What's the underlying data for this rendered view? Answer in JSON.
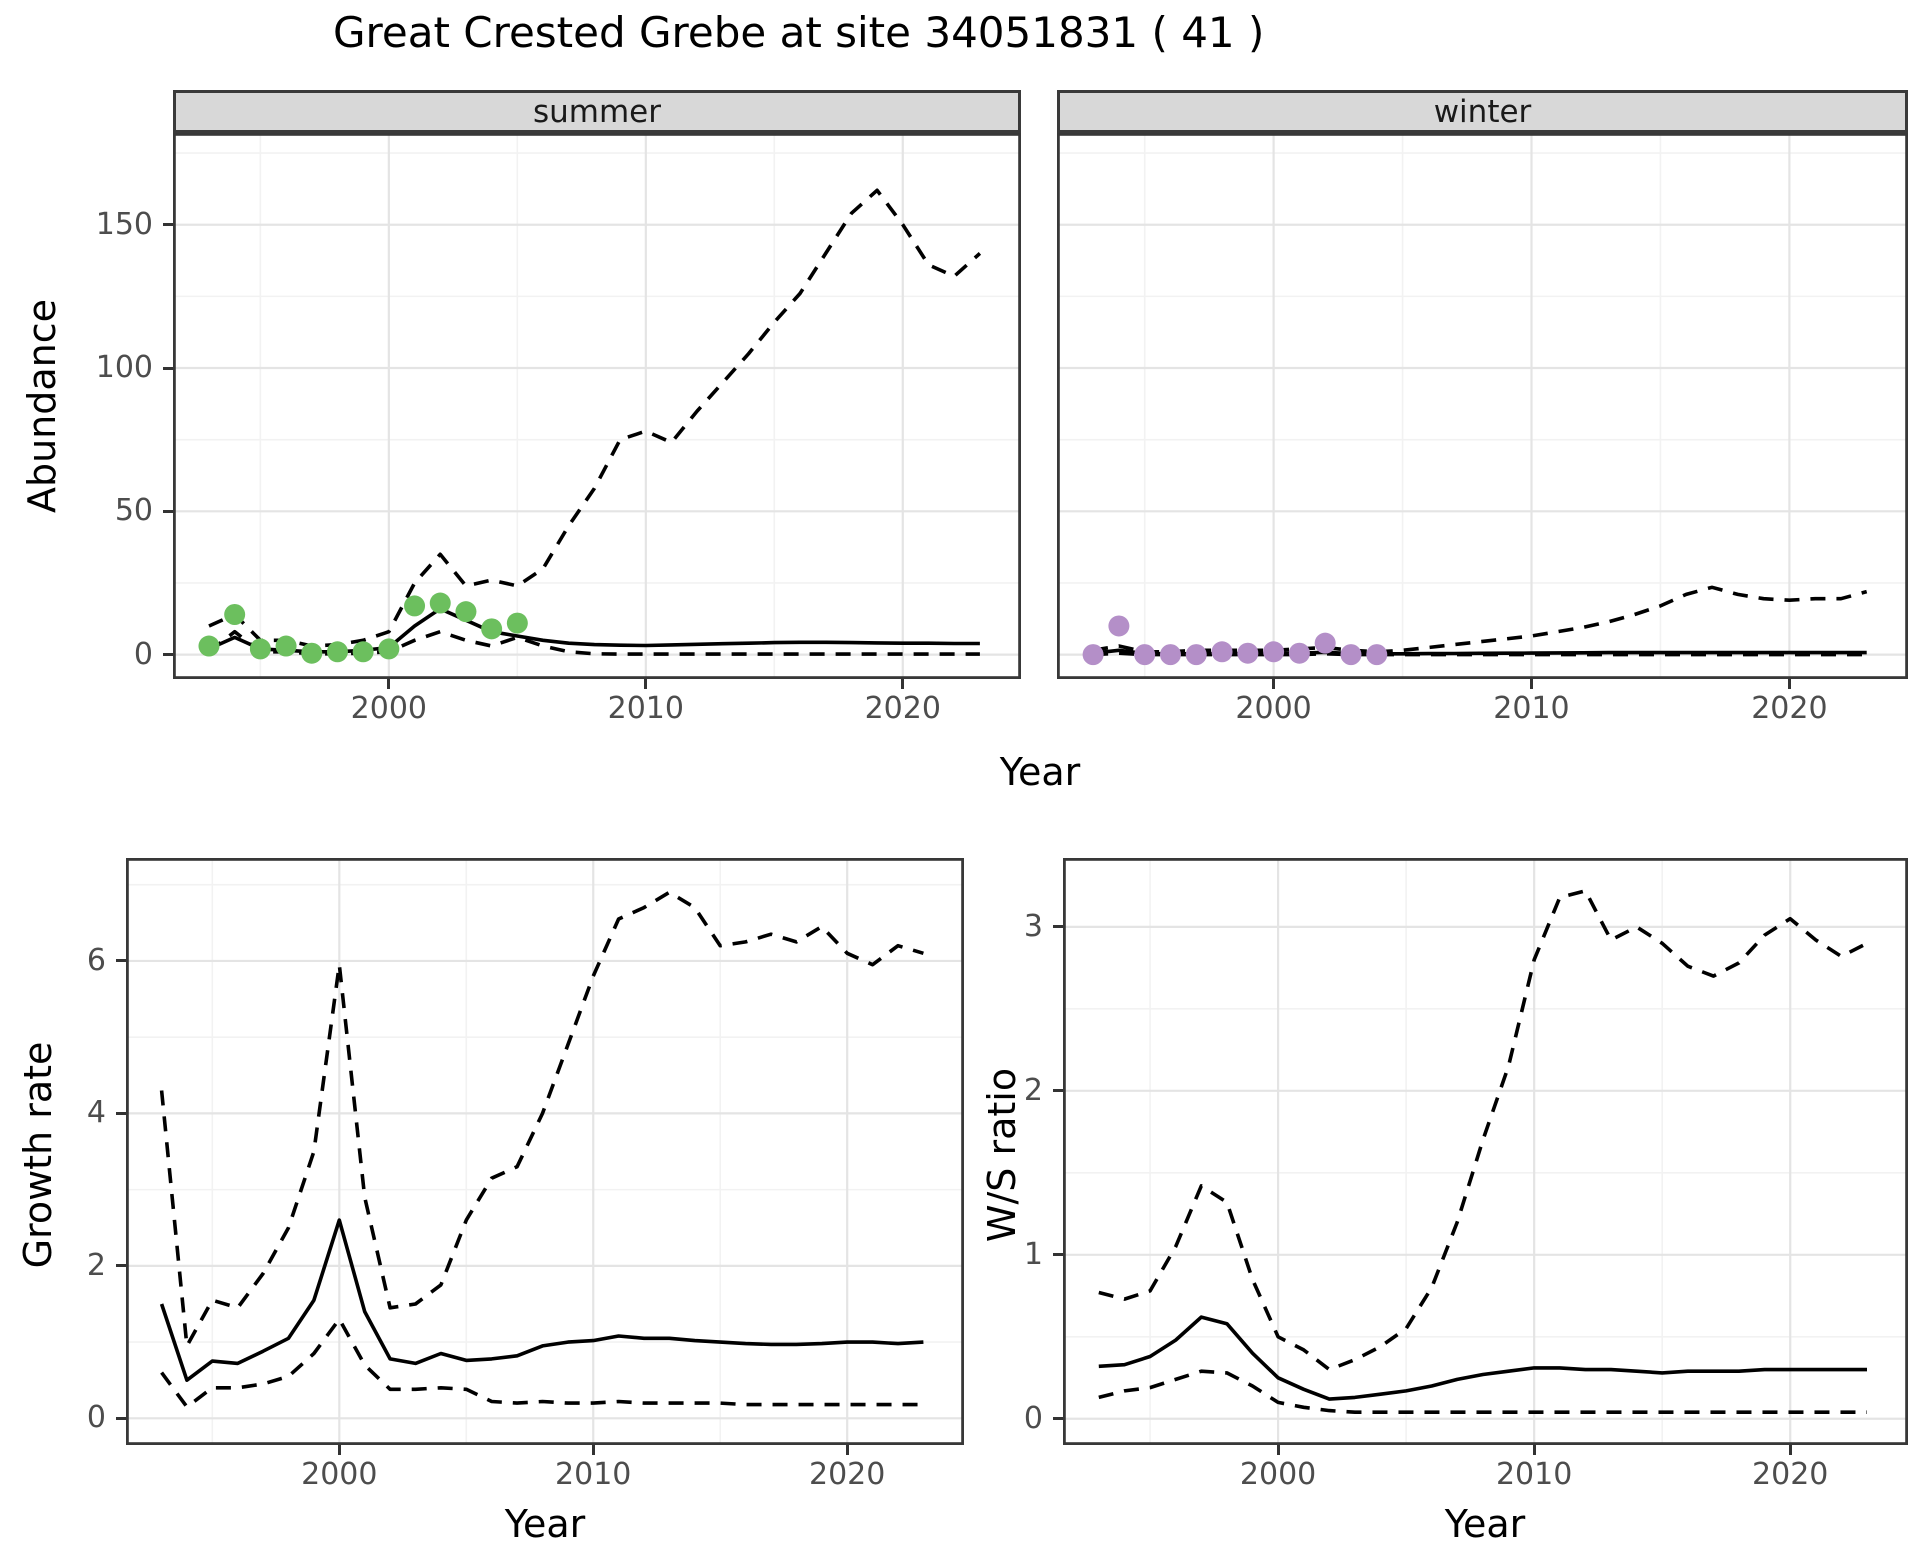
{
  "title": "Great Crested Grebe at site 34051831 ( 41 )",
  "labels": {
    "year": "Year",
    "abundance": "Abundance",
    "growth_rate": "Growth rate",
    "ws_ratio": "W/S ratio"
  },
  "colors": {
    "line": "#000000",
    "summer_points": "#6cbf5e",
    "winter_points": "#b48fc8",
    "grid_major": "#e4e4e4",
    "grid_minor": "#f2f2f2",
    "panel_border": "#383838",
    "tick_text": "#4d4d4d",
    "strip_fill": "#d8d8d8"
  },
  "chart_data": [
    {
      "id": "summer",
      "type": "line",
      "facet_label": "summer",
      "x_domain": [
        1991.6,
        2024.6
      ],
      "y_domain": [
        -8.5,
        182
      ],
      "x_major": [
        2000,
        2010,
        2020
      ],
      "x_minor": [
        1995,
        2005,
        2015
      ],
      "y_major": [
        0,
        50,
        100,
        150
      ],
      "y_minor": [
        25,
        75,
        125,
        175
      ],
      "x_tick_labels": [
        "2000",
        "2010",
        "2020"
      ],
      "y_tick_labels": [
        "0",
        "50",
        "100",
        "150"
      ],
      "years": [
        1993,
        1994,
        1995,
        1996,
        1997,
        1998,
        1999,
        2000,
        2001,
        2002,
        2003,
        2004,
        2005,
        2006,
        2007,
        2008,
        2009,
        2010,
        2011,
        2012,
        2013,
        2014,
        2015,
        2016,
        2017,
        2018,
        2019,
        2020,
        2021,
        2022,
        2023
      ],
      "series": [
        {
          "name": "lower_ci",
          "style": "dashed",
          "values": [
            1,
            8,
            1,
            1,
            0.3,
            0.3,
            0.5,
            1,
            5,
            8,
            5,
            3,
            6,
            3,
            1,
            0.3,
            0.2,
            0.2,
            0.2,
            0.2,
            0.2,
            0.2,
            0.2,
            0.2,
            0.2,
            0.2,
            0.2,
            0.2,
            0.2,
            0.2,
            0.2
          ]
        },
        {
          "name": "upper_ci",
          "style": "dashed",
          "values": [
            10,
            14,
            5,
            5,
            3,
            3.5,
            5,
            8,
            25,
            35,
            24,
            26,
            24,
            30,
            45,
            58,
            75,
            78,
            74,
            85,
            95,
            105,
            116,
            126,
            140,
            154,
            162,
            150,
            136,
            132,
            140
          ]
        },
        {
          "name": "median",
          "style": "solid",
          "values": [
            2,
            6,
            2,
            1.5,
            1,
            1,
            1.5,
            2.5,
            10,
            16,
            12,
            8,
            6.5,
            5,
            4,
            3.5,
            3.3,
            3.2,
            3.4,
            3.6,
            3.8,
            4,
            4.2,
            4.3,
            4.3,
            4.2,
            4.1,
            4,
            4,
            3.9,
            3.9
          ]
        }
      ],
      "points": {
        "color_key": "summer_points",
        "years": [
          1993,
          1994,
          1995,
          1996,
          1997,
          1998,
          1999,
          2000,
          2001,
          2002,
          2003,
          2004,
          2005
        ],
        "values": [
          3,
          14,
          2,
          3,
          0.5,
          1,
          1,
          2,
          17,
          18,
          15,
          9,
          11
        ]
      }
    },
    {
      "id": "winter",
      "type": "line",
      "facet_label": "winter",
      "x_domain": [
        1991.6,
        2024.6
      ],
      "y_domain": [
        -8.5,
        182
      ],
      "x_major": [
        2000,
        2010,
        2020
      ],
      "x_minor": [
        1995,
        2005,
        2015
      ],
      "y_major": [
        0,
        50,
        100,
        150
      ],
      "y_minor": [
        25,
        75,
        125,
        175
      ],
      "x_tick_labels": [
        "2000",
        "2010",
        "2020"
      ],
      "y_tick_labels": null,
      "years": [
        1993,
        1994,
        1995,
        1996,
        1997,
        1998,
        1999,
        2000,
        2001,
        2002,
        2003,
        2004,
        2005,
        2006,
        2007,
        2008,
        2009,
        2010,
        2011,
        2012,
        2013,
        2014,
        2015,
        2016,
        2017,
        2018,
        2019,
        2020,
        2021,
        2022,
        2023
      ],
      "series": [
        {
          "name": "lower_ci",
          "style": "dashed",
          "values": [
            0,
            0.5,
            0,
            0,
            0,
            0,
            0,
            0,
            0,
            0.3,
            0,
            0,
            0,
            0,
            0,
            0,
            0,
            0,
            0,
            0,
            0,
            0,
            0,
            0,
            0,
            0,
            0,
            0,
            0,
            0,
            0
          ]
        },
        {
          "name": "upper_ci",
          "style": "dashed",
          "values": [
            1.5,
            3,
            1,
            1,
            1.5,
            1.5,
            1.5,
            1.5,
            2,
            2.5,
            1.5,
            1,
            1.5,
            2.5,
            3.5,
            4.5,
            5.5,
            6.5,
            8,
            9.5,
            11.5,
            14,
            17,
            21,
            23.5,
            21,
            19.5,
            19,
            19.5,
            19.5,
            22
          ]
        },
        {
          "name": "median",
          "style": "solid",
          "values": [
            0.5,
            1.5,
            0.4,
            0.3,
            0.3,
            0.4,
            0.4,
            0.5,
            0.5,
            0.8,
            0.4,
            0.3,
            0.3,
            0.35,
            0.4,
            0.45,
            0.5,
            0.55,
            0.6,
            0.65,
            0.7,
            0.7,
            0.7,
            0.7,
            0.7,
            0.7,
            0.7,
            0.7,
            0.7,
            0.7,
            0.7
          ]
        }
      ],
      "points": {
        "color_key": "winter_points",
        "years": [
          1993,
          1994,
          1995,
          1996,
          1997,
          1998,
          1999,
          2000,
          2001,
          2002,
          2003,
          2004
        ],
        "values": [
          0,
          10,
          0,
          0,
          0,
          1,
          0.5,
          1,
          0.5,
          4,
          0,
          0
        ]
      }
    },
    {
      "id": "growth",
      "type": "line",
      "facet_label": null,
      "x_domain": [
        1991.6,
        2024.6
      ],
      "y_domain": [
        -0.35,
        7.35
      ],
      "x_major": [
        2000,
        2010,
        2020
      ],
      "x_minor": [
        1995,
        2005,
        2015
      ],
      "y_major": [
        0,
        2,
        4,
        6
      ],
      "y_minor": [
        1,
        3,
        5,
        7
      ],
      "x_tick_labels": [
        "2000",
        "2010",
        "2020"
      ],
      "y_tick_labels": [
        "0",
        "2",
        "4",
        "6"
      ],
      "years": [
        1993,
        1994,
        1995,
        1996,
        1997,
        1998,
        1999,
        2000,
        2001,
        2002,
        2003,
        2004,
        2005,
        2006,
        2007,
        2008,
        2009,
        2010,
        2011,
        2012,
        2013,
        2014,
        2015,
        2016,
        2017,
        2018,
        2019,
        2020,
        2021,
        2022,
        2023
      ],
      "series": [
        {
          "name": "lower_ci",
          "style": "dashed",
          "values": [
            0.6,
            0.15,
            0.4,
            0.4,
            0.45,
            0.55,
            0.85,
            1.3,
            0.7,
            0.38,
            0.38,
            0.4,
            0.38,
            0.22,
            0.2,
            0.22,
            0.2,
            0.2,
            0.22,
            0.2,
            0.2,
            0.2,
            0.2,
            0.18,
            0.18,
            0.18,
            0.18,
            0.18,
            0.18,
            0.18,
            0.18
          ]
        },
        {
          "name": "upper_ci",
          "style": "dashed",
          "values": [
            4.3,
            0.95,
            1.55,
            1.45,
            1.9,
            2.5,
            3.5,
            5.95,
            2.9,
            1.45,
            1.5,
            1.75,
            2.6,
            3.15,
            3.3,
            4.0,
            4.9,
            5.8,
            6.55,
            6.7,
            6.9,
            6.7,
            6.2,
            6.25,
            6.35,
            6.25,
            6.45,
            6.1,
            5.95,
            6.2,
            6.1
          ]
        },
        {
          "name": "median",
          "style": "solid",
          "values": [
            1.5,
            0.5,
            0.75,
            0.72,
            0.88,
            1.05,
            1.55,
            2.6,
            1.4,
            0.78,
            0.72,
            0.85,
            0.76,
            0.78,
            0.82,
            0.95,
            1.0,
            1.02,
            1.08,
            1.05,
            1.05,
            1.02,
            1.0,
            0.98,
            0.97,
            0.97,
            0.98,
            1.0,
            1.0,
            0.98,
            1.0
          ]
        }
      ],
      "points": null
    },
    {
      "id": "ws",
      "type": "line",
      "facet_label": null,
      "x_domain": [
        1991.6,
        2024.6
      ],
      "y_domain": [
        -0.16,
        3.42
      ],
      "x_major": [
        2000,
        2010,
        2020
      ],
      "x_minor": [
        1995,
        2005,
        2015
      ],
      "y_major": [
        0,
        1,
        2,
        3
      ],
      "y_minor": [
        0.5,
        1.5,
        2.5
      ],
      "x_tick_labels": [
        "2000",
        "2010",
        "2020"
      ],
      "y_tick_labels": [
        "0",
        "1",
        "2",
        "3"
      ],
      "years": [
        1993,
        1994,
        1995,
        1996,
        1997,
        1998,
        1999,
        2000,
        2001,
        2002,
        2003,
        2004,
        2005,
        2006,
        2007,
        2008,
        2009,
        2010,
        2011,
        2012,
        2013,
        2014,
        2015,
        2016,
        2017,
        2018,
        2019,
        2020,
        2021,
        2022,
        2023
      ],
      "series": [
        {
          "name": "lower_ci",
          "style": "dashed",
          "values": [
            0.13,
            0.17,
            0.19,
            0.24,
            0.29,
            0.28,
            0.2,
            0.1,
            0.07,
            0.05,
            0.04,
            0.04,
            0.04,
            0.04,
            0.04,
            0.04,
            0.04,
            0.04,
            0.04,
            0.04,
            0.04,
            0.04,
            0.04,
            0.04,
            0.04,
            0.04,
            0.04,
            0.04,
            0.04,
            0.04,
            0.04
          ]
        },
        {
          "name": "upper_ci",
          "style": "dashed",
          "values": [
            0.77,
            0.73,
            0.78,
            1.05,
            1.42,
            1.32,
            0.85,
            0.5,
            0.42,
            0.3,
            0.36,
            0.44,
            0.55,
            0.8,
            1.2,
            1.7,
            2.15,
            2.8,
            3.18,
            3.22,
            2.92,
            3.0,
            2.9,
            2.76,
            2.7,
            2.78,
            2.95,
            3.05,
            2.92,
            2.82,
            2.9
          ]
        },
        {
          "name": "median",
          "style": "solid",
          "values": [
            0.32,
            0.33,
            0.38,
            0.48,
            0.62,
            0.58,
            0.4,
            0.25,
            0.18,
            0.12,
            0.13,
            0.15,
            0.17,
            0.2,
            0.24,
            0.27,
            0.29,
            0.31,
            0.31,
            0.3,
            0.3,
            0.29,
            0.28,
            0.29,
            0.29,
            0.29,
            0.3,
            0.3,
            0.3,
            0.3,
            0.3
          ]
        }
      ],
      "points": null
    }
  ]
}
